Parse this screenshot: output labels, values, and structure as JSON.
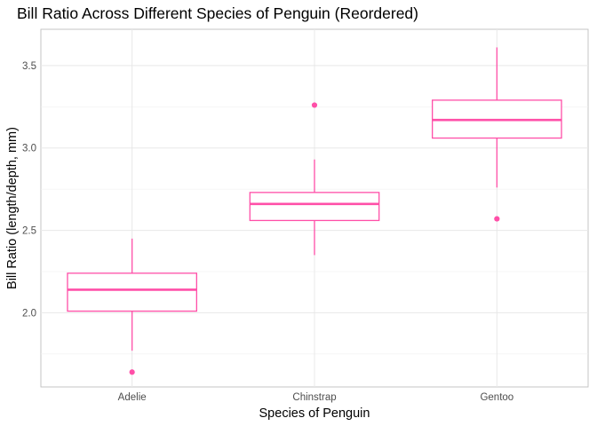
{
  "chart_data": {
    "type": "boxplot",
    "title": "Bill Ratio Across Different Species of Penguin (Reordered)",
    "xlabel": "Species of Penguin",
    "ylabel": "Bill Ratio (length/depth, mm)",
    "categories": [
      "Adelie",
      "Chinstrap",
      "Gentoo"
    ],
    "ylim": [
      1.55,
      3.72
    ],
    "yticks": [
      2.0,
      2.5,
      3.0,
      3.5
    ],
    "ytick_labels": [
      "2.0",
      "2.5",
      "3.0",
      "3.5"
    ],
    "grid": true,
    "legend": "none",
    "box_color": "#ff4fa8",
    "boxes": [
      {
        "category": "Adelie",
        "min": 1.77,
        "q1": 2.01,
        "median": 2.14,
        "q3": 2.24,
        "max": 2.45,
        "outliers": [
          1.64
        ]
      },
      {
        "category": "Chinstrap",
        "min": 2.35,
        "q1": 2.56,
        "median": 2.66,
        "q3": 2.73,
        "max": 2.93,
        "outliers": [
          3.26
        ]
      },
      {
        "category": "Gentoo",
        "min": 2.76,
        "q1": 3.06,
        "median": 3.17,
        "q3": 3.29,
        "max": 3.61,
        "outliers": [
          2.57
        ]
      }
    ]
  }
}
